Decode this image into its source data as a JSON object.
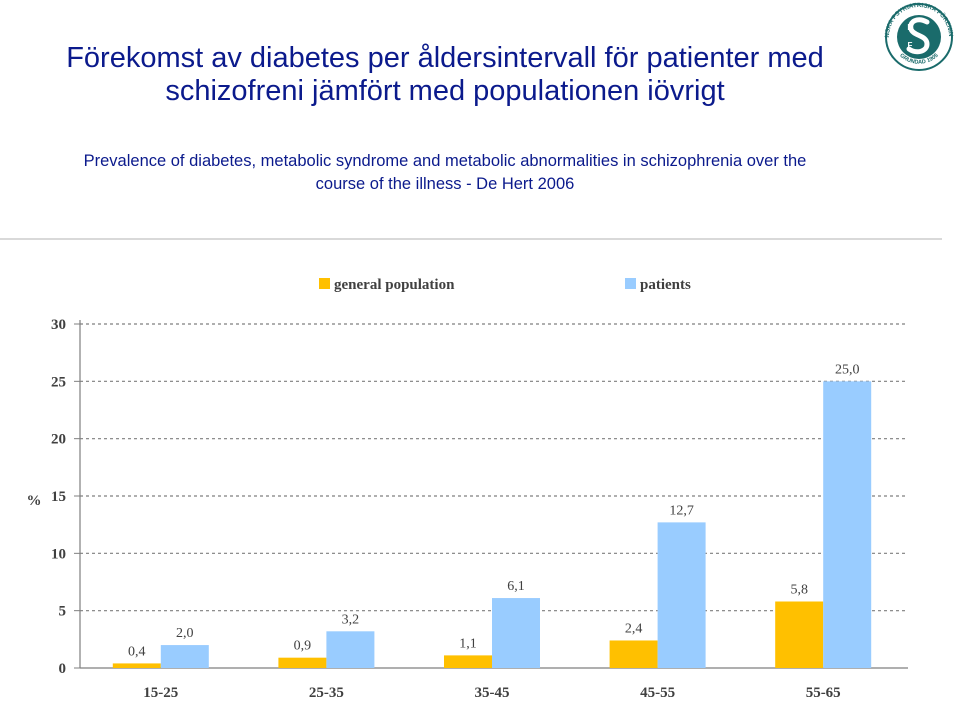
{
  "header": {
    "title_line1": "Förekomst av diabetes per åldersintervall för patienter med",
    "title_line2": "schizofreni jämfört med populationen iövrigt",
    "subtitle_line1": "Prevalence of diabetes, metabolic syndrome and metabolic abnormalities in schizophrenia over the",
    "subtitle_line2": "course of the illness - De Hert 2006"
  },
  "logo": {
    "ring_text": "SVENSKA PSYKIATRISKA FÖRENINGEN",
    "founded": "GRUNDAD 1905",
    "letters": [
      "P",
      "F"
    ]
  },
  "colors": {
    "title": "#0b1a8c",
    "general_population": "#ffc000",
    "patients": "#99ccff",
    "grid": "#7f7f7f",
    "axis_text": "#404040",
    "logo_ring": "#1a6b6b"
  },
  "chart_data": {
    "type": "bar",
    "categories": [
      "15-25",
      "25-35",
      "35-45",
      "45-55",
      "55-65"
    ],
    "series": [
      {
        "name": "general population",
        "values": [
          0.4,
          0.9,
          1.1,
          2.4,
          5.8
        ],
        "labels": [
          "0,4",
          "0,9",
          "1,1",
          "2,4",
          "5,8"
        ]
      },
      {
        "name": "patients",
        "values": [
          2.0,
          3.2,
          6.1,
          12.7,
          25.0
        ],
        "labels": [
          "2,0",
          "3,2",
          "6,1",
          "12,7",
          "25,0"
        ]
      }
    ],
    "ylabel": "%",
    "yticks": [
      0,
      5,
      10,
      15,
      20,
      25,
      30
    ],
    "ylim": [
      0,
      30
    ],
    "grid": true,
    "legend": "top-center"
  }
}
